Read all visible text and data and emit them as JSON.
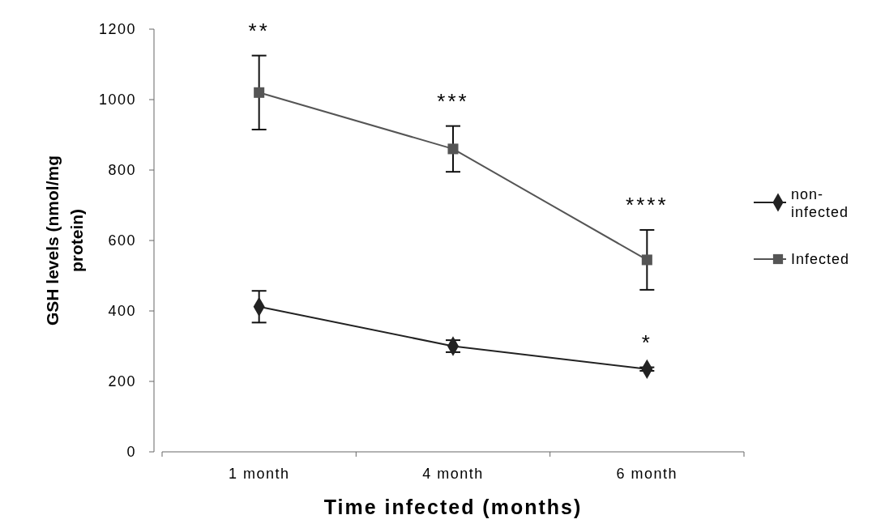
{
  "chart_data": {
    "type": "line",
    "xlabel": "Time infected (months)",
    "ylabel": "GSH levels (nmol/mg protein)",
    "categories": [
      "1 month",
      "4 month",
      "6 month"
    ],
    "series": [
      {
        "name": "non-infected",
        "color": "#222222",
        "marker": "diamond",
        "values": [
          412,
          300,
          235
        ],
        "errors": [
          45,
          17,
          5
        ]
      },
      {
        "name": "Infected",
        "color": "#555555",
        "marker": "square",
        "values": [
          1020,
          860,
          545
        ],
        "errors": [
          105,
          65,
          85
        ]
      }
    ],
    "ylim": [
      0,
      1200
    ],
    "yticks": [
      0,
      200,
      400,
      600,
      800,
      1000,
      1200
    ],
    "grid": false,
    "legend": "right",
    "annotations": [
      {
        "text": "**",
        "x": "1 month",
        "y": 1020
      },
      {
        "text": "***",
        "x": "4 month",
        "y": 860
      },
      {
        "text": "****",
        "x": "6 month",
        "y": 545
      },
      {
        "text": "*",
        "x": "6 month",
        "y": 235
      }
    ]
  }
}
